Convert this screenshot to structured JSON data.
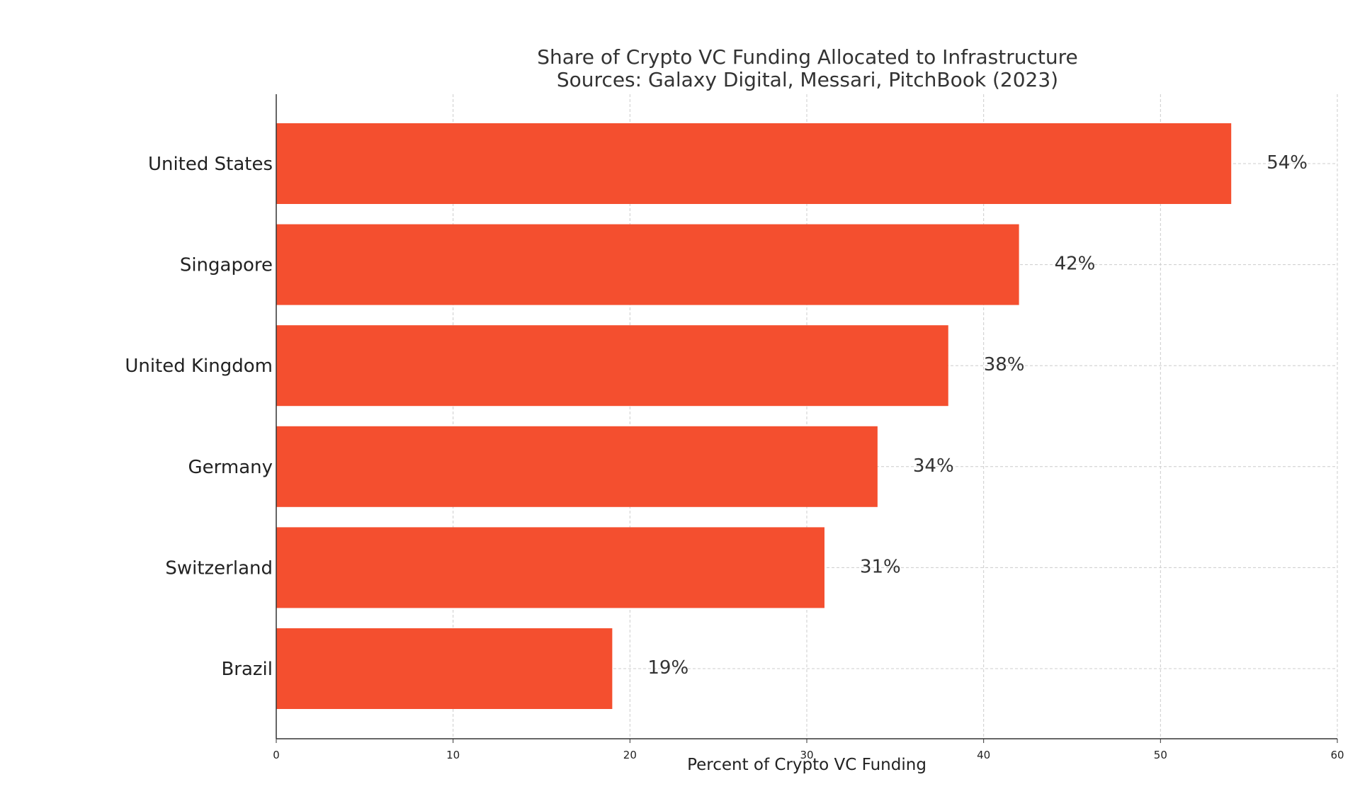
{
  "chart_data": {
    "type": "bar",
    "orientation": "horizontal",
    "title": "Share of Crypto VC Funding Allocated to Infrastructure",
    "subtitle": "Sources: Galaxy Digital, Messari, PitchBook (2023)",
    "xlabel": "Percent of Crypto VC Funding",
    "ylabel": "",
    "categories": [
      "United States",
      "Singapore",
      "United Kingdom",
      "Germany",
      "Switzerland",
      "Brazil"
    ],
    "values": [
      54,
      42,
      38,
      34,
      31,
      19
    ],
    "data_labels": [
      "54%",
      "42%",
      "38%",
      "34%",
      "31%",
      "19%"
    ],
    "xlim": [
      0,
      60
    ],
    "xticks": [
      "0",
      "10",
      "20",
      "30",
      "40",
      "50",
      "60"
    ],
    "grid": true,
    "bar_color": "#f44f2f"
  }
}
